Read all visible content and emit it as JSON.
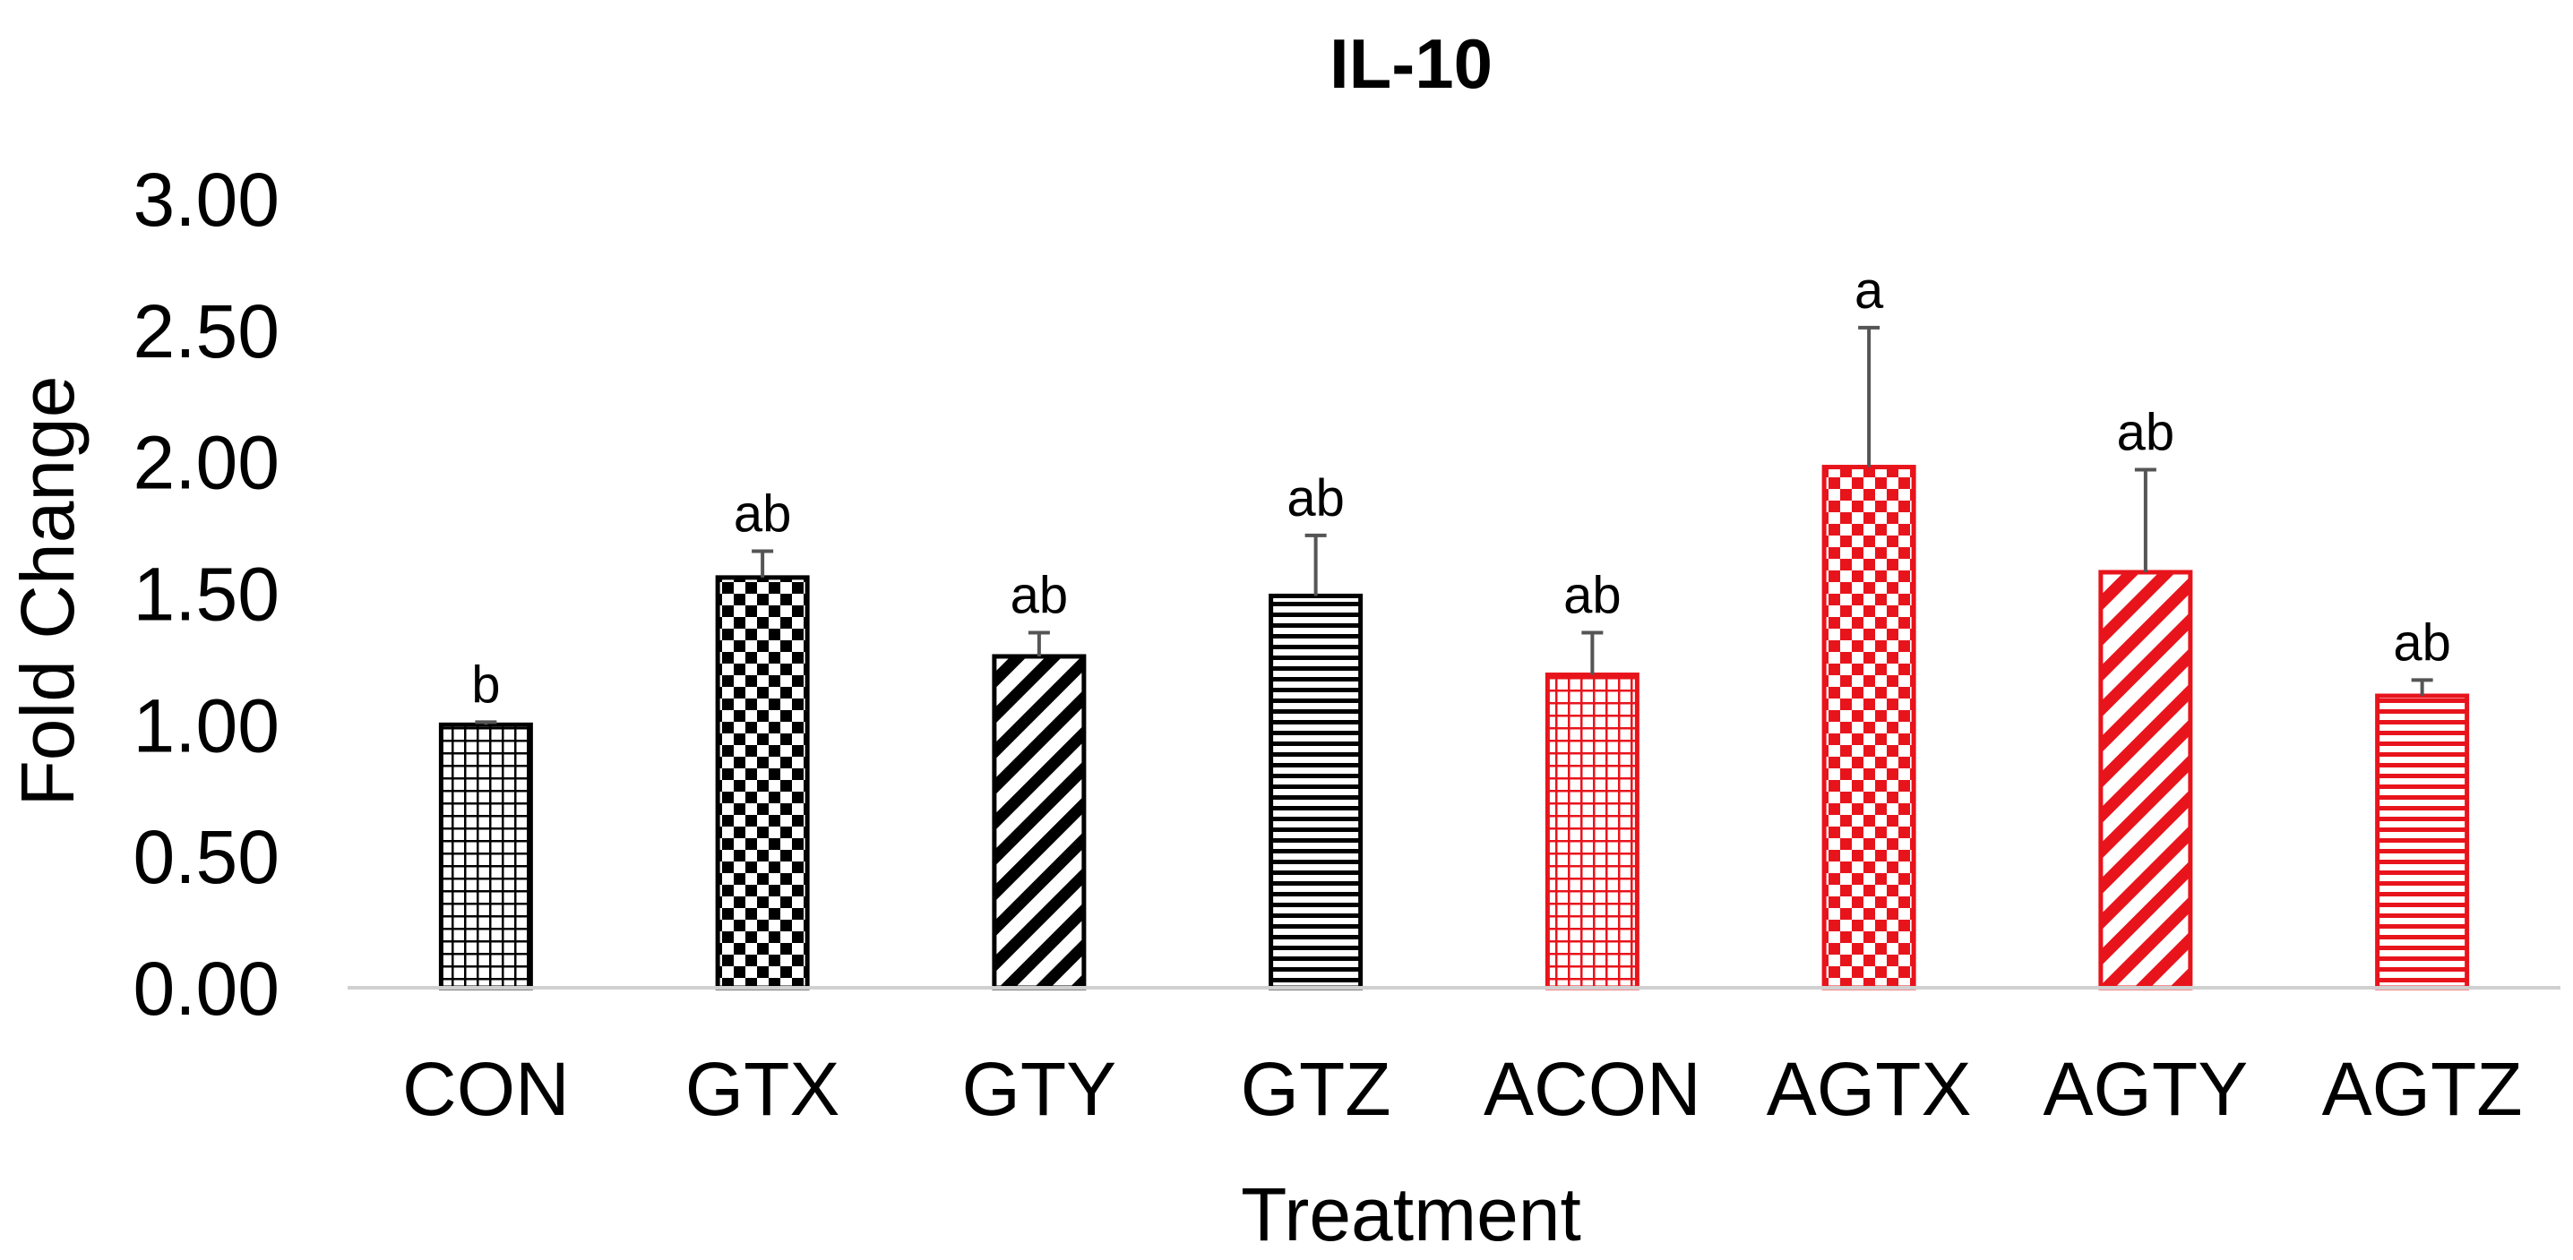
{
  "colors": {
    "black": "#000000",
    "red": "#e8141c",
    "axis": "#d0d0d0",
    "error_bar": "#555555"
  },
  "chart_data": {
    "type": "bar",
    "title": "IL-10",
    "xlabel": "Treatment",
    "ylabel": "Fold Change",
    "ylim": [
      0,
      3
    ],
    "y_ticks": [
      "0.00",
      "0.50",
      "1.00",
      "1.50",
      "2.00",
      "2.50",
      "3.00"
    ],
    "grid": false,
    "categories": [
      "CON",
      "GTX",
      "GTY",
      "GTZ",
      "ACON",
      "AGTX",
      "AGTY",
      "AGTZ"
    ],
    "values": [
      1.0,
      1.56,
      1.26,
      1.49,
      1.19,
      1.98,
      1.58,
      1.11
    ],
    "error_upper": [
      0.01,
      0.1,
      0.09,
      0.23,
      0.16,
      0.53,
      0.39,
      0.06
    ],
    "significance": [
      "b",
      "ab",
      "ab",
      "ab",
      "ab",
      "a",
      "ab",
      "ab"
    ],
    "patterns": [
      "small-grid",
      "checker",
      "diagonal",
      "horizontal",
      "small-grid",
      "checker",
      "diagonal",
      "horizontal"
    ],
    "bar_colors": [
      "black",
      "black",
      "black",
      "black",
      "red",
      "red",
      "red",
      "red"
    ]
  }
}
